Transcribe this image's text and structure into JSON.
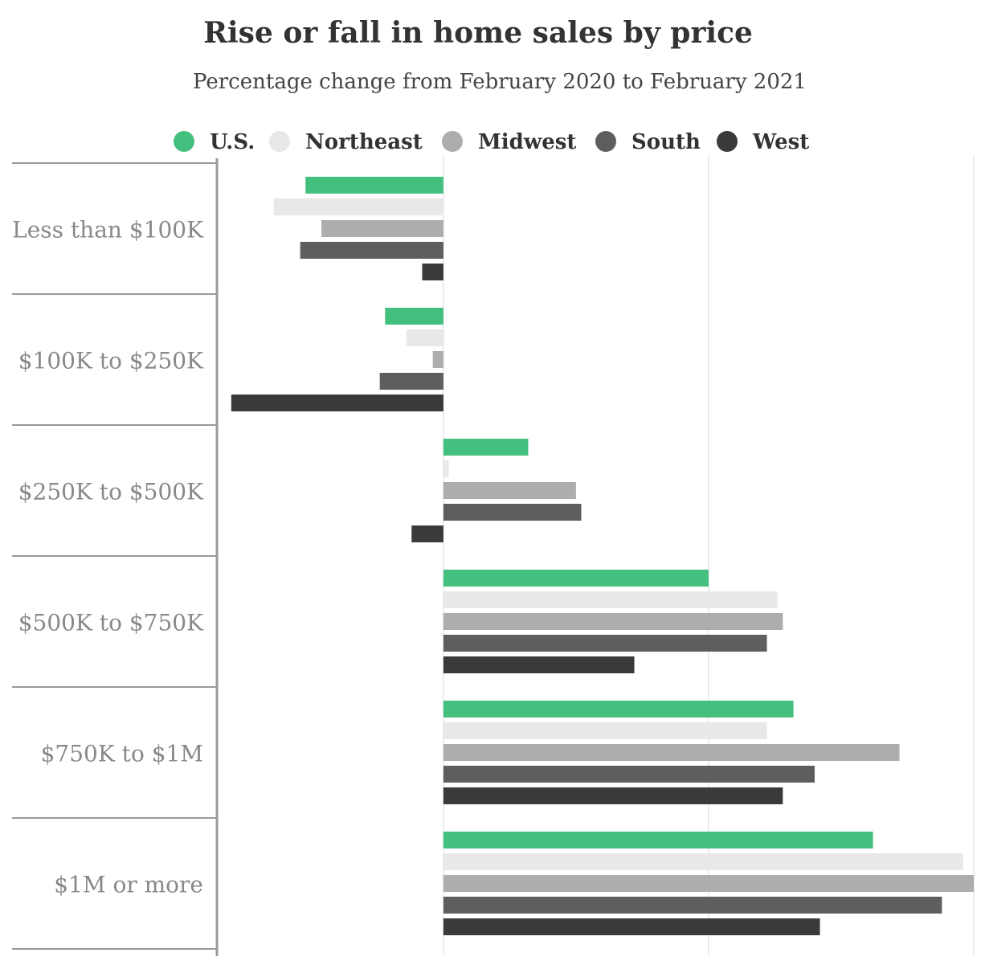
{
  "chart_data": {
    "type": "bar",
    "orientation": "horizontal",
    "title": "Rise or fall in home sales by price",
    "subtitle": "Percentage change from February 2020 to February 2021",
    "categories": [
      "Less than $100K",
      "$100K to $250K",
      "$250K to $500K",
      "$500K to $750K",
      "$750K to $1M",
      "$1M or more"
    ],
    "series": [
      {
        "name": "U.S.",
        "color": "#44c07e",
        "values": [
          -26,
          -11,
          16,
          50,
          66,
          81
        ]
      },
      {
        "name": "Northeast",
        "color": "#e8e8e8",
        "values": [
          -32,
          -7,
          1,
          63,
          61,
          98
        ]
      },
      {
        "name": "Midwest",
        "color": "#adadad",
        "values": [
          -23,
          -2,
          25,
          64,
          86,
          100
        ]
      },
      {
        "name": "South",
        "color": "#5e5e5e",
        "values": [
          -27,
          -12,
          26,
          61,
          70,
          94
        ]
      },
      {
        "name": "West",
        "color": "#3a3a3a",
        "values": [
          -4,
          -40,
          -6,
          36,
          64,
          71
        ]
      }
    ],
    "xlim": [
      -42.4,
      100
    ],
    "xgrid": [
      0,
      50,
      100
    ],
    "grid": true,
    "legend": "top"
  }
}
